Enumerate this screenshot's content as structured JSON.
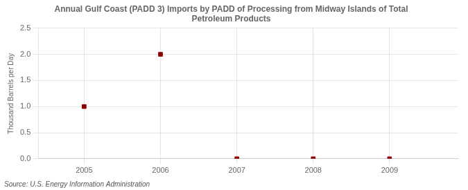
{
  "chart_data": {
    "type": "scatter",
    "title": "Annual Gulf Coast (PADD 3) Imports by PADD of Processing from Midway Islands of Total\nPetroleum Products",
    "ylabel": "Thousand Barrels per Day",
    "annotations": [
      "Source: U.S. Energy Information Administration"
    ],
    "x": [
      2005,
      2006,
      2007,
      2008,
      2009
    ],
    "values": [
      1.0,
      2.0,
      0.0,
      0.0,
      0.0
    ],
    "color": "#8b0000",
    "marker": "square",
    "xlim": [
      2004.4,
      2009.9
    ],
    "ylim": [
      0.0,
      2.5
    ],
    "xticks": [
      2005,
      2006,
      2007,
      2008,
      2009
    ],
    "yticks": [
      {
        "value": 0.0,
        "label": "0.0"
      },
      {
        "value": 0.5,
        "label": "0.5"
      },
      {
        "value": 1.0,
        "label": "1.0"
      },
      {
        "value": 1.5,
        "label": "1.5"
      },
      {
        "value": 2.0,
        "label": "2.0"
      },
      {
        "value": 2.5,
        "label": "2.5"
      }
    ],
    "grid": true
  }
}
